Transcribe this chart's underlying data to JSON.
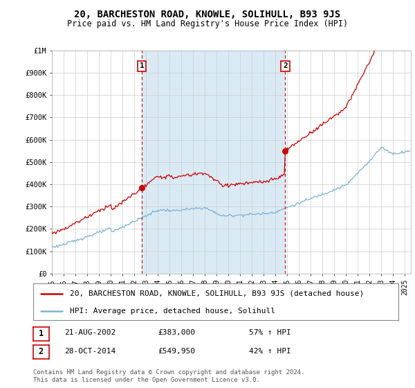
{
  "title": "20, BARCHESTON ROAD, KNOWLE, SOLIHULL, B93 9JS",
  "subtitle": "Price paid vs. HM Land Registry's House Price Index (HPI)",
  "ylim": [
    0,
    1000000
  ],
  "yticks": [
    0,
    100000,
    200000,
    300000,
    400000,
    500000,
    600000,
    700000,
    800000,
    900000,
    1000000
  ],
  "ytick_labels": [
    "£0",
    "£100K",
    "£200K",
    "£300K",
    "£400K",
    "£500K",
    "£600K",
    "£700K",
    "£800K",
    "£900K",
    "£1M"
  ],
  "hpi_color": "#7ab3d4",
  "price_color": "#cc0000",
  "fill_color": "#daeaf5",
  "transaction1_x": 2002.646,
  "transaction1_price": 383000,
  "transaction2_x": 2014.831,
  "transaction2_price": 549950,
  "legend_label_price": "20, BARCHESTON ROAD, KNOWLE, SOLIHULL, B93 9JS (detached house)",
  "legend_label_hpi": "HPI: Average price, detached house, Solihull",
  "footer": "Contains HM Land Registry data © Crown copyright and database right 2024.\nThis data is licensed under the Open Government Licence v3.0.",
  "bg_color": "#ffffff",
  "grid_color": "#cccccc",
  "xmin": 1995.0,
  "xmax": 2025.5,
  "title_fontsize": 10,
  "subtitle_fontsize": 8.5,
  "tick_fontsize": 7.5,
  "legend_fontsize": 8,
  "footer_fontsize": 6.5
}
